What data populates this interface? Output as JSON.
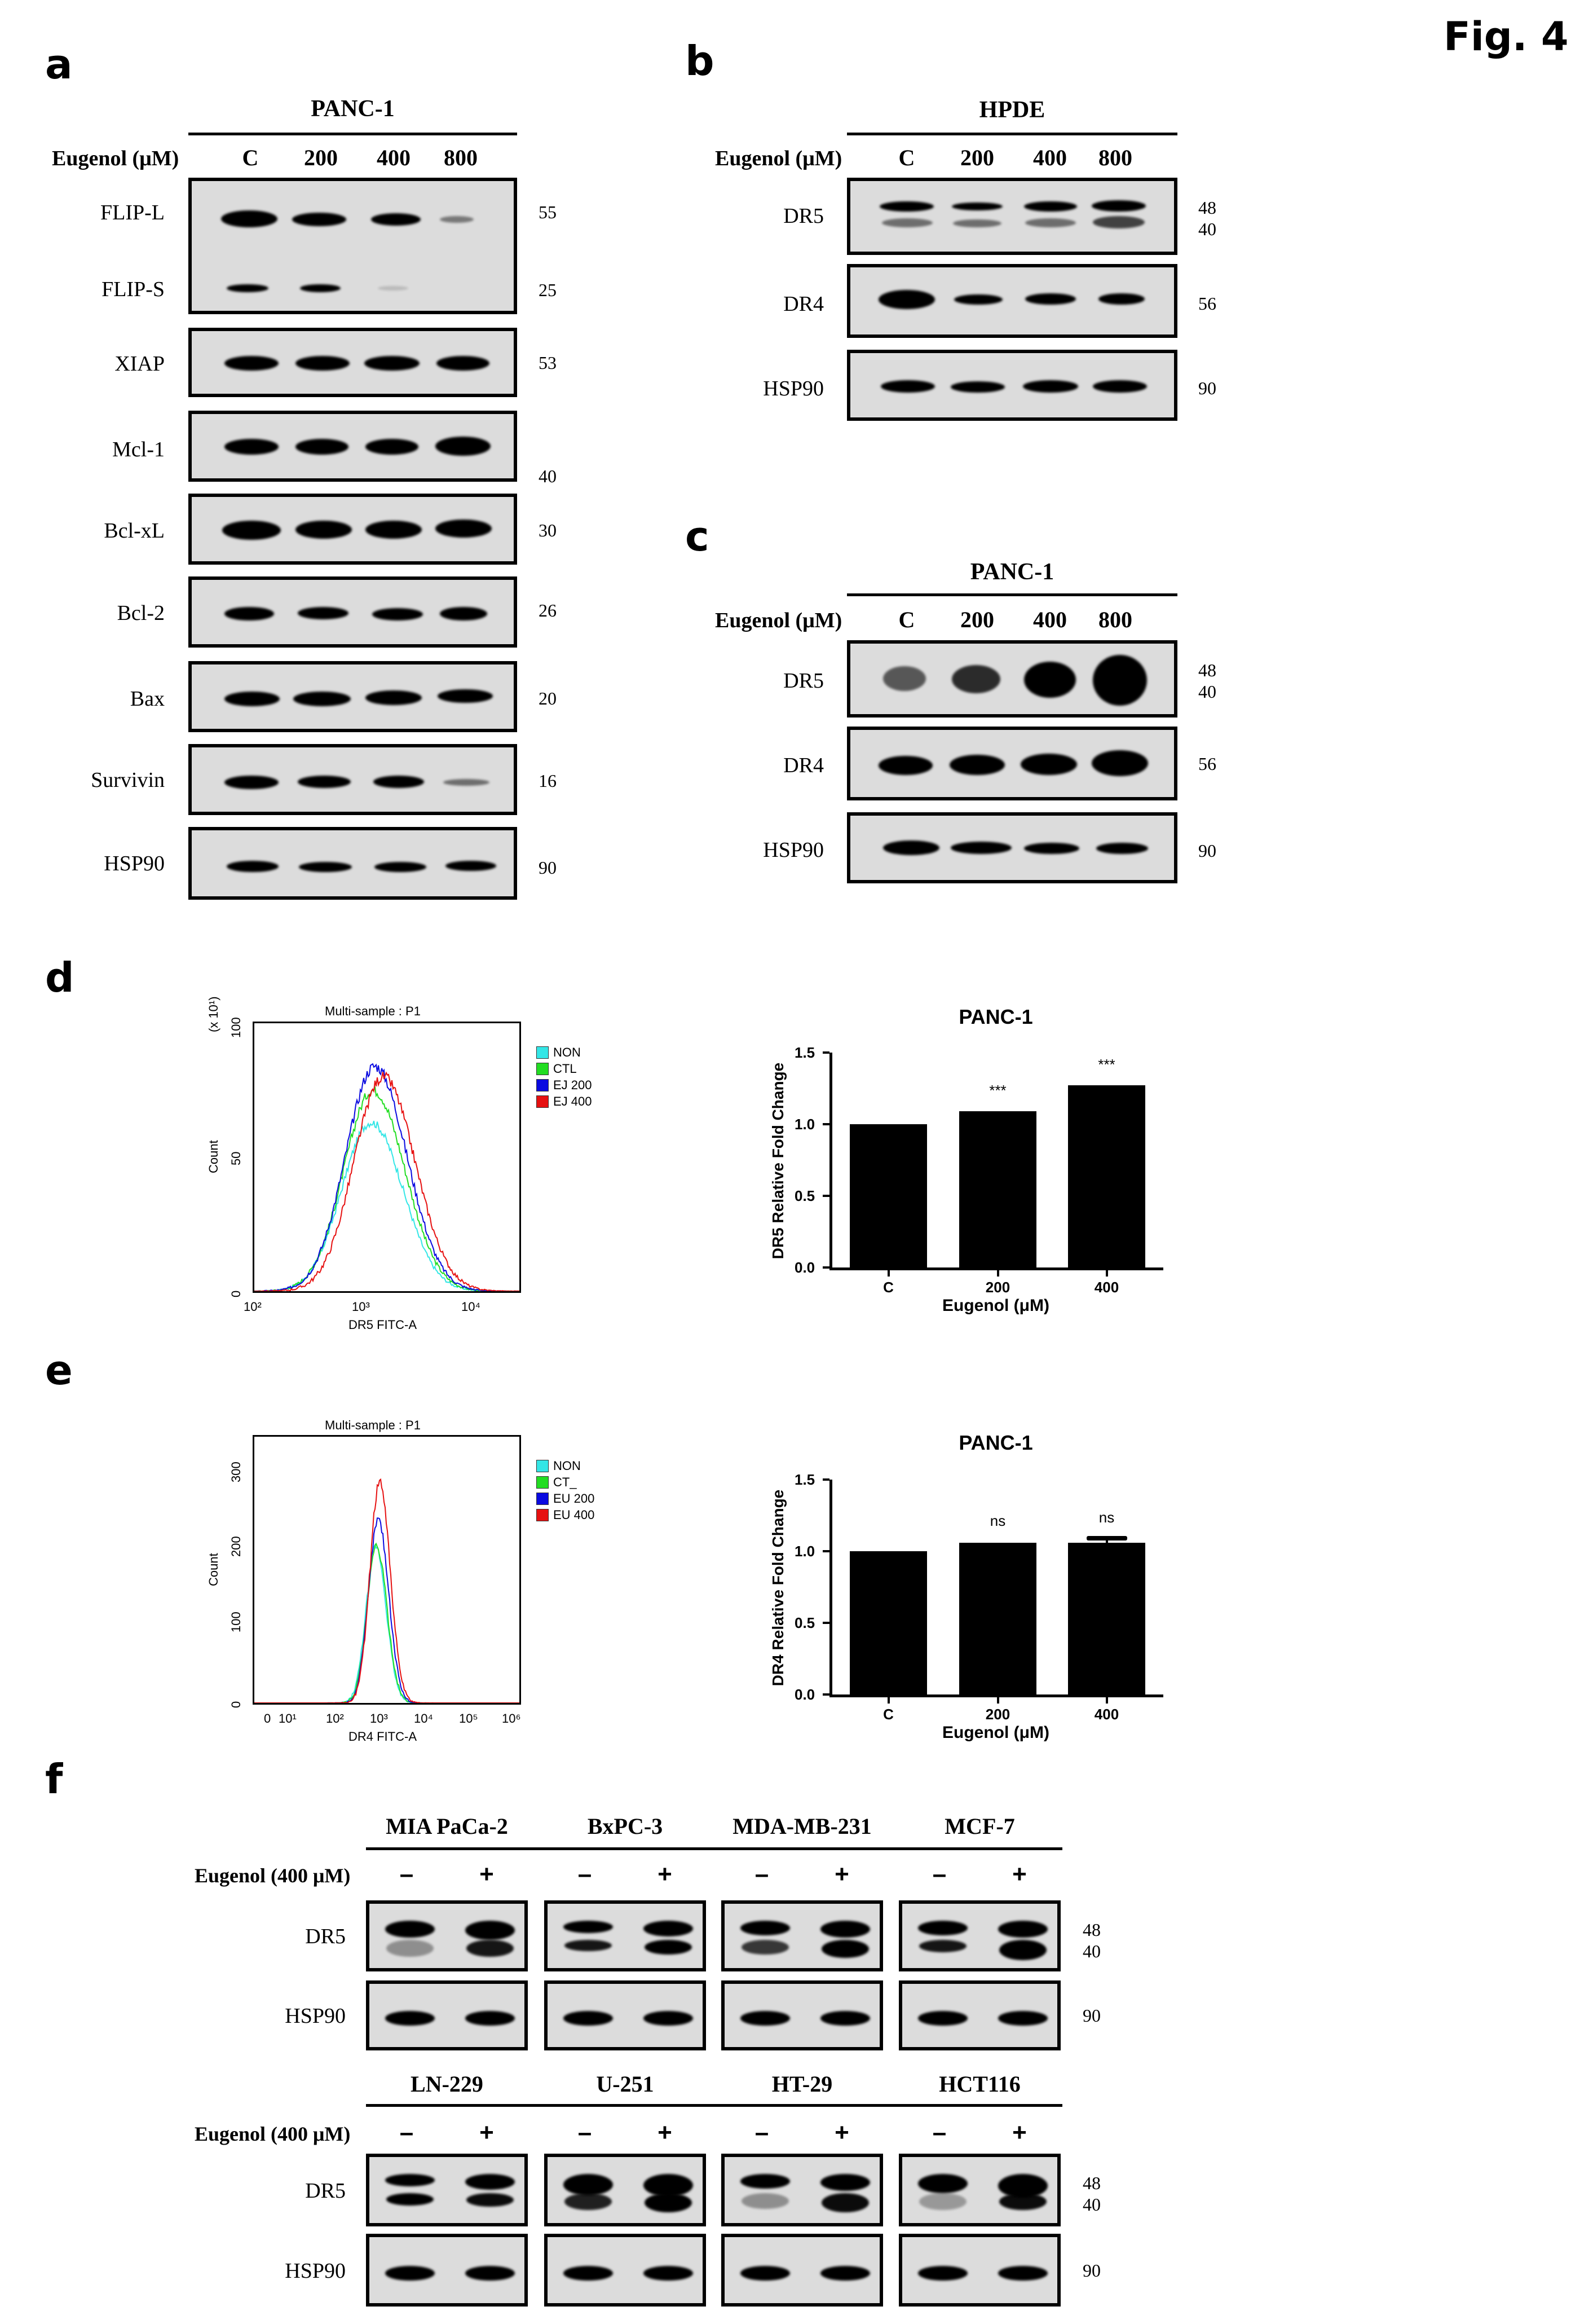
{
  "figure": {
    "title": "Fig. 4"
  },
  "panels": {
    "a": {
      "letter": "a",
      "cell_line": "PANC-1",
      "dose_label": "Eugenol (μM)",
      "lanes": [
        "C",
        "200",
        "400",
        "800"
      ],
      "blots": [
        {
          "proteins": [
            "FLIP-L",
            "FLIP-S"
          ],
          "mw": [
            "55",
            "25"
          ]
        },
        {
          "proteins": [
            "XIAP"
          ],
          "mw": [
            "53"
          ]
        },
        {
          "proteins": [
            "Mcl-1"
          ],
          "mw": [
            "40"
          ]
        },
        {
          "proteins": [
            "Bcl-xL"
          ],
          "mw": [
            "30"
          ]
        },
        {
          "proteins": [
            "Bcl-2"
          ],
          "mw": [
            "26"
          ]
        },
        {
          "proteins": [
            "Bax"
          ],
          "mw": [
            "20"
          ]
        },
        {
          "proteins": [
            "Survivin"
          ],
          "mw": [
            "16"
          ]
        },
        {
          "proteins": [
            "HSP90"
          ],
          "mw": [
            "90"
          ]
        }
      ]
    },
    "b": {
      "letter": "b",
      "cell_line": "HPDE",
      "dose_label": "Eugenol (μM)",
      "lanes": [
        "C",
        "200",
        "400",
        "800"
      ],
      "blots": [
        {
          "protein": "DR5",
          "mw": [
            "48",
            "40"
          ]
        },
        {
          "protein": "DR4",
          "mw": [
            "56"
          ]
        },
        {
          "protein": "HSP90",
          "mw": [
            "90"
          ]
        }
      ]
    },
    "c": {
      "letter": "c",
      "cell_line": "PANC-1",
      "dose_label": "Eugenol (μM)",
      "lanes": [
        "C",
        "200",
        "400",
        "800"
      ],
      "blots": [
        {
          "protein": "DR5",
          "mw": [
            "48",
            "40"
          ]
        },
        {
          "protein": "DR4",
          "mw": [
            "56"
          ]
        },
        {
          "protein": "HSP90",
          "mw": [
            "90"
          ]
        }
      ]
    },
    "d": {
      "letter": "d",
      "flow": {
        "title": "Multi-sample : P1",
        "ylabel": "Count",
        "ymultiplier": "(x 10¹)",
        "yticks": [
          "0",
          "50",
          "100"
        ],
        "xlabel": "DR5 FITC-A",
        "xticks": [
          "10²",
          "10³",
          "10⁴"
        ],
        "legend": [
          {
            "label": "NON",
            "color": "#33e6e6"
          },
          {
            "label": "CTL",
            "color": "#22dd22"
          },
          {
            "label": "EJ 200",
            "color": "#0a0ae0"
          },
          {
            "label": "EJ 400",
            "color": "#e61010"
          }
        ]
      },
      "bar": {
        "title": "PANC-1",
        "ylabel": "DR5 Relative Fold Change",
        "xlabel": "Eugenol (μM)",
        "yticks": [
          "0.0",
          "0.5",
          "1.0",
          "1.5"
        ],
        "categories": [
          "C",
          "200",
          "400"
        ],
        "significance": [
          "",
          "***",
          "***"
        ]
      }
    },
    "e": {
      "letter": "e",
      "flow": {
        "title": "Multi-sample : P1",
        "ylabel": "Count",
        "yticks": [
          "0",
          "100",
          "200",
          "300"
        ],
        "xlabel": "DR4 FITC-A",
        "xticks": [
          "0",
          "10¹",
          "10²",
          "10³",
          "10⁴",
          "10⁵",
          "10⁶"
        ],
        "legend": [
          {
            "label": "NON",
            "color": "#33e6e6"
          },
          {
            "label": "CT_",
            "color": "#22dd22"
          },
          {
            "label": "EU 200",
            "color": "#0a0ae0"
          },
          {
            "label": "EU 400",
            "color": "#e61010"
          }
        ]
      },
      "bar": {
        "title": "PANC-1",
        "ylabel": "DR4 Relative Fold Change",
        "xlabel": "Eugenol (μM)",
        "yticks": [
          "0.0",
          "0.5",
          "1.0",
          "1.5"
        ],
        "categories": [
          "C",
          "200",
          "400"
        ],
        "significance": [
          "",
          "ns",
          "ns"
        ]
      }
    },
    "f": {
      "letter": "f",
      "treatment_label": "Eugenol  (400 μM)",
      "minus": "–",
      "plus": "+",
      "proteins": [
        "DR5",
        "HSP90"
      ],
      "dr5_mw": [
        "48",
        "40"
      ],
      "hsp90_mw": [
        "90"
      ],
      "rows": [
        {
          "cell_lines": [
            "MIA PaCa-2",
            "BxPC-3",
            "MDA-MB-231",
            "MCF-7"
          ]
        },
        {
          "cell_lines": [
            "LN-229",
            "U-251",
            "HT-29",
            "HCT116"
          ]
        }
      ]
    }
  },
  "chart_data": [
    {
      "type": "bar",
      "title": "PANC-1",
      "xlabel": "Eugenol (μM)",
      "ylabel": "DR5 Relative Fold Change",
      "categories": [
        "C",
        "200",
        "400"
      ],
      "values": [
        1.0,
        1.09,
        1.27
      ],
      "annotations": [
        "",
        "***",
        "***"
      ],
      "ylim": [
        0,
        1.5
      ],
      "yticks": [
        0.0,
        0.5,
        1.0,
        1.5
      ],
      "grid": false,
      "legend": "none"
    },
    {
      "type": "bar",
      "title": "PANC-1",
      "xlabel": "Eugenol (μM)",
      "ylabel": "DR4 Relative Fold Change",
      "categories": [
        "C",
        "200",
        "400"
      ],
      "values": [
        1.0,
        1.06,
        1.06
      ],
      "error": [
        0,
        0.005,
        0.03
      ],
      "annotations": [
        "",
        "ns",
        "ns"
      ],
      "ylim": [
        0,
        1.5
      ],
      "yticks": [
        0.0,
        0.5,
        1.0,
        1.5
      ],
      "grid": false,
      "legend": "none"
    },
    {
      "type": "line",
      "title": "Multi-sample : P1",
      "xlabel": "DR5 FITC-A",
      "ylabel": "Count (x 10¹)",
      "xscale": "log",
      "xlim": [
        100,
        30000
      ],
      "ylim": [
        0,
        100
      ],
      "series": [
        {
          "name": "NON",
          "color": "#33e6e6",
          "peak_x": 1200,
          "peak_y": 63
        },
        {
          "name": "CTL",
          "color": "#22dd22",
          "peak_x": 1250,
          "peak_y": 75
        },
        {
          "name": "EJ 200",
          "color": "#0a0ae0",
          "peak_x": 1300,
          "peak_y": 84
        },
        {
          "name": "EJ 400",
          "color": "#e61010",
          "peak_x": 1550,
          "peak_y": 80
        }
      ],
      "legend_position": "right"
    },
    {
      "type": "line",
      "title": "Multi-sample : P1",
      "xlabel": "DR4 FITC-A",
      "ylabel": "Count",
      "xscale": "log",
      "xlim": [
        0,
        1000000
      ],
      "ylim": [
        0,
        340
      ],
      "series": [
        {
          "name": "NON",
          "color": "#33e6e6",
          "peak_x": 1100,
          "peak_y": 200
        },
        {
          "name": "CT_",
          "color": "#22dd22",
          "peak_x": 1150,
          "peak_y": 200
        },
        {
          "name": "EU 200",
          "color": "#0a0ae0",
          "peak_x": 1250,
          "peak_y": 235
        },
        {
          "name": "EU 400",
          "color": "#e61010",
          "peak_x": 1350,
          "peak_y": 285
        }
      ],
      "legend_position": "right"
    }
  ]
}
